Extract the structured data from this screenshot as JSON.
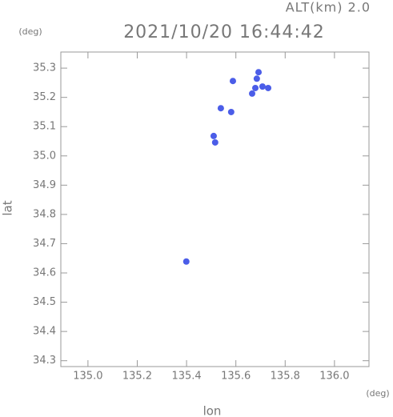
{
  "chart_data": {
    "type": "scatter",
    "title": "2021/10/20 16:44:42",
    "subtitle": "ALT(km) 2.0",
    "x_label": "lon",
    "y_label": "lat",
    "x_unit": "(deg)",
    "y_unit": "(deg)",
    "color": "#4b5de8",
    "xlim": [
      134.89,
      136.14
    ],
    "ylim": [
      34.28,
      35.355
    ],
    "xticks": [
      {
        "value": 135,
        "label": "135.0"
      },
      135.2,
      135.4,
      135.6,
      135.8,
      {
        "value": 136,
        "label": "136.0"
      }
    ],
    "yticks": [
      34.3,
      34.4,
      34.5,
      34.6,
      34.7,
      34.8,
      34.9,
      {
        "value": 35,
        "label": "35.0"
      },
      35.1,
      35.2,
      35.3
    ],
    "x": [
      135.692,
      135.685,
      135.708,
      135.679,
      135.731,
      135.666,
      135.588,
      135.539,
      135.581,
      135.51,
      135.516,
      135.399
    ],
    "values": [
      35.286,
      35.264,
      35.237,
      35.232,
      35.232,
      35.213,
      35.256,
      35.163,
      35.15,
      35.068,
      35.046,
      34.639
    ]
  }
}
